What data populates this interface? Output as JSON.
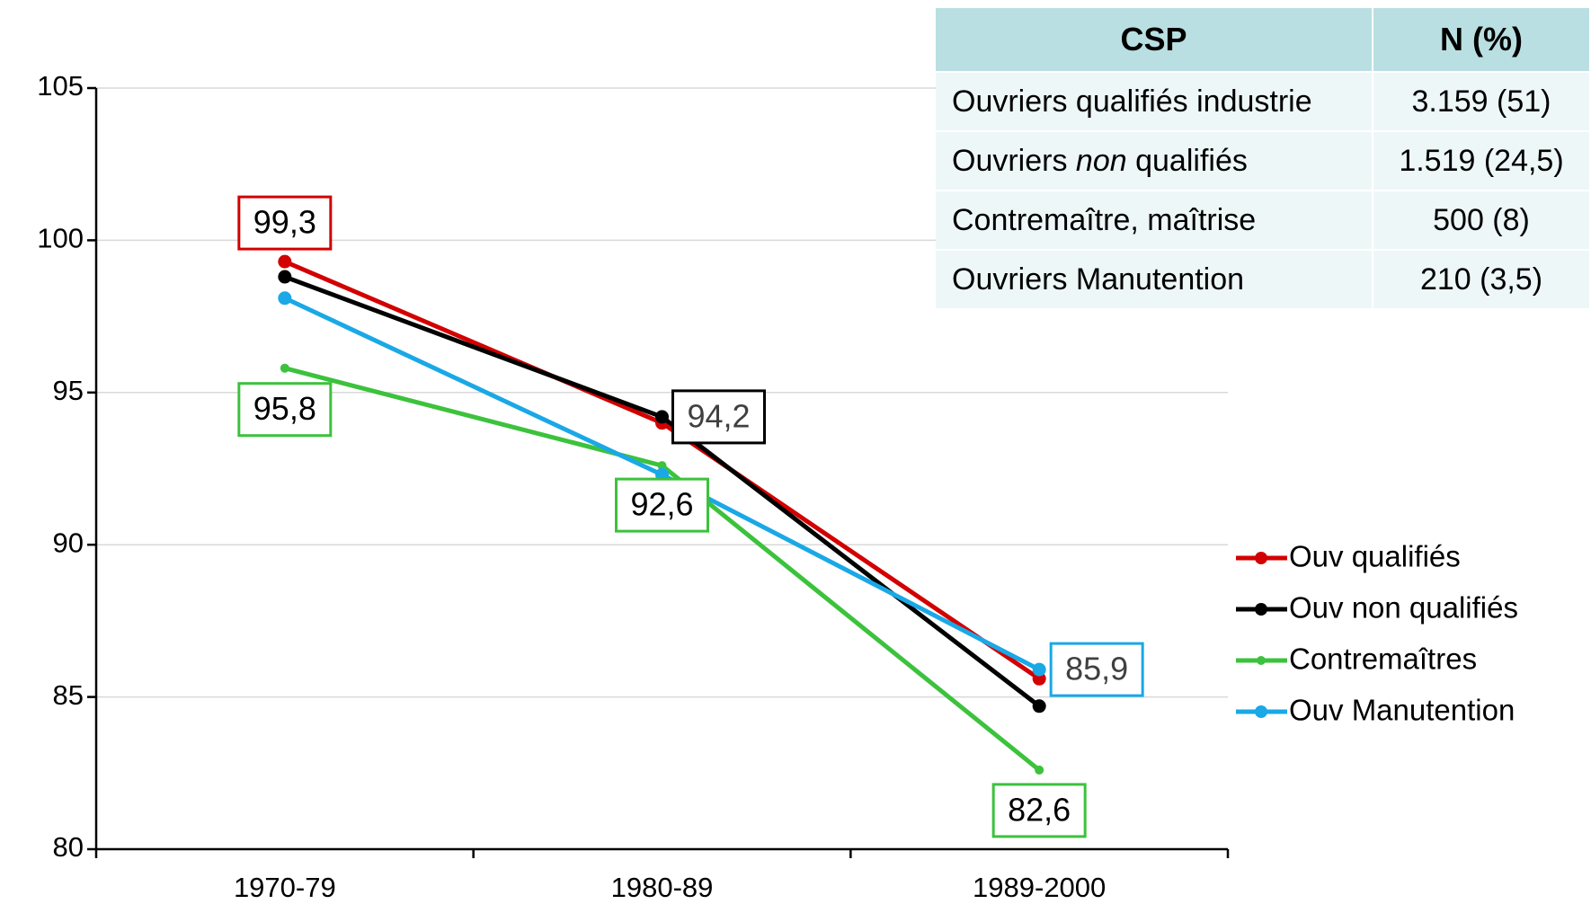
{
  "chart_data": {
    "type": "line",
    "categories": [
      "1970-79",
      "1980-89",
      "1989-2000"
    ],
    "series": [
      {
        "name": "Ouv qualifiés",
        "color": "#d20000",
        "values": [
          99.3,
          94.0,
          85.6
        ],
        "value_labels": [
          "99,3",
          null,
          null
        ]
      },
      {
        "name": "Ouv non qualifiés",
        "color": "#000000",
        "values": [
          98.8,
          94.2,
          84.7
        ],
        "value_labels": [
          null,
          "94,2",
          null
        ]
      },
      {
        "name": "Contremaîtres",
        "color": "#3cc23c",
        "values": [
          95.8,
          92.6,
          82.6
        ],
        "value_labels": [
          "95,8",
          "92,6",
          "82,6"
        ]
      },
      {
        "name": "Ouv Manutention",
        "color": "#1aa8e6",
        "values": [
          98.1,
          92.3,
          85.9
        ],
        "value_labels": [
          null,
          null,
          "85,9"
        ]
      }
    ],
    "ylim": [
      80,
      105
    ],
    "yticks": [
      80,
      85,
      90,
      95,
      100,
      105
    ],
    "grid": true,
    "legend": "right"
  },
  "table": {
    "header": [
      "CSP",
      "N (%)"
    ],
    "rows": [
      [
        [
          "Ouvriers qualifiés industrie"
        ],
        "3.159 (51)"
      ],
      [
        [
          "Ouvriers",
          "non",
          "qualifiés"
        ],
        "1.519 (24,5)"
      ],
      [
        [
          "Contremaître, maîtrise"
        ],
        "500 (8)"
      ],
      [
        [
          "Ouvriers Manutention"
        ],
        "210 (3,5)"
      ]
    ]
  }
}
